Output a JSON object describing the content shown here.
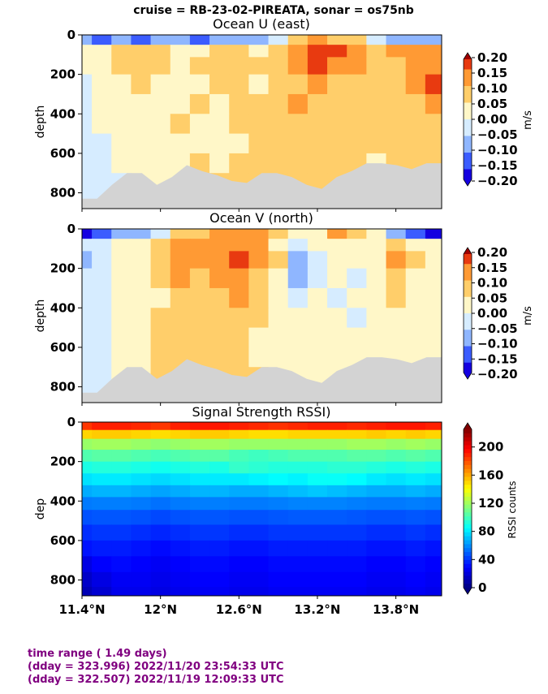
{
  "suptitle": "cruise = RB-23-02-PIREATA,  sonar = os75nb",
  "x_ticks": [
    "11.4°N",
    "12°N",
    "12.6°N",
    "13.2°N",
    "13.8°N"
  ],
  "x_tick_values": [
    11.4,
    12.0,
    12.6,
    13.2,
    13.8
  ],
  "footer": {
    "line1": "time range ( 1.49 days)",
    "line2": "(dday = 323.996) 2022/11/20 23:54:33 UTC",
    "line3": "(dday = 322.507) 2022/11/19 12:09:33 UTC"
  },
  "colors": {
    "footer_text": "#800080",
    "bottom_mask": "#d3d3d3"
  },
  "chart_data": [
    {
      "type": "heatmap",
      "title": "Ocean U (east)",
      "ylabel": "depth",
      "colorbar_label": "m/s",
      "colorbar_ticks": [
        "0.20",
        "0.15",
        "0.10",
        "0.05",
        "0.00",
        "−0.05",
        "−0.10",
        "−0.15",
        "−0.20"
      ],
      "y_ticks": [
        "0",
        "200",
        "400",
        "600",
        "800"
      ],
      "ylim": [
        880,
        0
      ],
      "xlim": [
        11.4,
        14.15
      ],
      "clim": [
        -0.2,
        0.2
      ],
      "colormap": "diverging_blue_white_red",
      "bottom_depth": [
        830,
        830,
        760,
        700,
        700,
        760,
        720,
        660,
        690,
        710,
        740,
        750,
        700,
        700,
        720,
        760,
        780,
        720,
        690,
        650,
        650,
        660,
        680,
        650,
        650
      ],
      "grid_depths": [
        25,
        75,
        150,
        250,
        350,
        450,
        550,
        650,
        750,
        850
      ],
      "grid_lats": [
        11.4,
        11.55,
        11.7,
        11.85,
        12.0,
        12.15,
        12.3,
        12.45,
        12.6,
        12.75,
        12.9,
        13.05,
        13.2,
        13.35,
        13.5,
        13.65,
        13.8,
        13.95,
        14.1
      ],
      "values": [
        [
          -0.1,
          -0.12,
          -0.08,
          -0.12,
          -0.1,
          -0.08,
          -0.12,
          -0.08,
          -0.1,
          -0.08,
          -0.04,
          0.05,
          0.12,
          0.05,
          0.06,
          -0.04,
          -0.06,
          -0.1,
          -0.08
        ],
        [
          0.0,
          0.02,
          0.05,
          0.08,
          0.06,
          0.04,
          0.02,
          0.05,
          0.06,
          0.04,
          0.05,
          0.12,
          0.18,
          0.15,
          0.1,
          0.08,
          0.1,
          0.12,
          0.1
        ],
        [
          0.0,
          0.0,
          0.06,
          0.09,
          0.05,
          0.03,
          0.05,
          0.08,
          0.06,
          0.05,
          0.07,
          0.1,
          0.15,
          0.13,
          0.1,
          0.09,
          0.06,
          0.1,
          0.12
        ],
        [
          -0.02,
          0.0,
          0.04,
          0.06,
          0.04,
          0.02,
          0.04,
          0.06,
          0.05,
          0.04,
          0.06,
          0.08,
          0.1,
          0.09,
          0.08,
          0.09,
          0.07,
          0.14,
          0.16
        ],
        [
          -0.03,
          0.02,
          0.0,
          0.04,
          0.02,
          0.04,
          0.05,
          0.04,
          0.06,
          0.05,
          0.07,
          0.12,
          0.08,
          0.07,
          0.06,
          0.08,
          0.06,
          0.08,
          0.1
        ],
        [
          -0.02,
          0.0,
          0.02,
          0.03,
          0.04,
          0.05,
          0.03,
          0.04,
          0.05,
          0.06,
          0.07,
          0.06,
          0.06,
          0.08,
          0.07,
          0.06,
          0.07,
          0.06,
          0.08
        ],
        [
          -0.03,
          -0.02,
          0.0,
          0.02,
          0.03,
          0.04,
          0.03,
          0.02,
          0.04,
          0.05,
          0.05,
          0.06,
          0.05,
          0.06,
          0.06,
          0.05,
          0.05,
          0.05,
          0.05
        ],
        [
          -0.02,
          -0.02,
          0.0,
          0.01,
          0.02,
          0.03,
          0.05,
          0.04,
          0.05,
          0.05,
          0.06,
          0.07,
          0.06,
          0.05,
          0.06,
          0.04,
          0.05,
          0.05,
          0.05
        ],
        [
          -0.02,
          -0.02,
          -0.01,
          0.0,
          0.02,
          0.02,
          0.06,
          0.05,
          0.06,
          0.06,
          0.06,
          0.07,
          0.05,
          0.05,
          0.05,
          0.05,
          0.04,
          0.05,
          0.04
        ],
        [
          -0.02,
          -0.02,
          -0.02,
          0.0,
          0.01,
          0.02,
          0.03,
          0.04,
          0.05,
          0.05,
          0.05,
          0.06,
          0.05,
          0.05,
          0.04,
          0.04,
          0.04,
          0.04,
          0.04
        ]
      ]
    },
    {
      "type": "heatmap",
      "title": "Ocean V (north)",
      "ylabel": "depth",
      "colorbar_label": "m/s",
      "colorbar_ticks": [
        "0.20",
        "0.15",
        "0.10",
        "0.05",
        "0.00",
        "−0.05",
        "−0.10",
        "−0.15",
        "−0.20"
      ],
      "y_ticks": [
        "0",
        "200",
        "400",
        "600",
        "800"
      ],
      "ylim": [
        880,
        0
      ],
      "xlim": [
        11.4,
        14.15
      ],
      "clim": [
        -0.2,
        0.2
      ],
      "colormap": "diverging_blue_white_red",
      "bottom_depth": [
        830,
        830,
        760,
        700,
        700,
        760,
        720,
        660,
        690,
        710,
        740,
        750,
        700,
        700,
        720,
        760,
        780,
        720,
        690,
        650,
        650,
        660,
        680,
        650,
        650
      ],
      "grid_depths": [
        25,
        75,
        150,
        250,
        350,
        450,
        550,
        650,
        750,
        850
      ],
      "grid_lats": [
        11.4,
        11.55,
        11.7,
        11.85,
        12.0,
        12.15,
        12.3,
        12.45,
        12.6,
        12.75,
        12.9,
        13.05,
        13.2,
        13.35,
        13.5,
        13.65,
        13.8,
        13.95,
        14.1
      ],
      "values": [
        [
          -0.16,
          -0.12,
          -0.08,
          -0.06,
          -0.02,
          0.05,
          0.08,
          0.1,
          0.14,
          0.12,
          0.05,
          0.0,
          0.02,
          0.1,
          0.06,
          0.0,
          -0.06,
          -0.12,
          -0.16
        ],
        [
          -0.04,
          -0.02,
          0.0,
          0.02,
          0.06,
          0.1,
          0.1,
          0.12,
          0.12,
          0.1,
          0.04,
          -0.02,
          0.0,
          0.02,
          0.04,
          0.02,
          0.06,
          0.04,
          0.02
        ],
        [
          -0.06,
          -0.04,
          0.0,
          0.04,
          0.08,
          0.12,
          0.1,
          0.12,
          0.16,
          0.12,
          0.06,
          -0.06,
          -0.02,
          0.0,
          0.02,
          0.0,
          0.1,
          0.06,
          0.02
        ],
        [
          -0.05,
          -0.03,
          0.0,
          0.02,
          0.06,
          0.12,
          0.09,
          0.1,
          0.12,
          0.08,
          0.04,
          -0.08,
          -0.03,
          0.0,
          -0.02,
          0.02,
          0.08,
          0.03,
          0.0
        ],
        [
          -0.04,
          -0.02,
          0.0,
          0.01,
          0.04,
          0.08,
          0.06,
          0.08,
          0.1,
          0.06,
          0.03,
          -0.04,
          0.0,
          -0.02,
          0.0,
          0.03,
          0.06,
          0.02,
          0.0
        ],
        [
          -0.03,
          -0.02,
          0.0,
          0.02,
          0.05,
          0.07,
          0.06,
          0.06,
          0.08,
          0.05,
          0.02,
          0.0,
          0.01,
          0.0,
          -0.04,
          0.02,
          0.03,
          0.02,
          0.0
        ],
        [
          -0.03,
          -0.02,
          0.0,
          0.02,
          0.06,
          0.06,
          0.06,
          0.06,
          0.06,
          0.04,
          0.02,
          0.0,
          0.02,
          0.01,
          0.0,
          0.02,
          0.02,
          0.02,
          0.0
        ],
        [
          -0.02,
          -0.02,
          0.0,
          0.02,
          0.06,
          0.06,
          0.07,
          0.06,
          0.06,
          0.04,
          0.02,
          0.01,
          0.02,
          0.01,
          0.0,
          0.01,
          0.02,
          0.02,
          0.01
        ],
        [
          -0.02,
          -0.01,
          0.0,
          0.02,
          0.06,
          0.07,
          0.08,
          0.07,
          0.06,
          0.05,
          0.03,
          0.02,
          0.02,
          0.02,
          0.01,
          0.02,
          0.02,
          0.02,
          0.01
        ],
        [
          -0.02,
          -0.01,
          0.0,
          0.02,
          0.06,
          0.07,
          0.08,
          0.07,
          0.06,
          0.05,
          0.03,
          0.02,
          0.02,
          0.02,
          0.01,
          0.02,
          0.02,
          0.02,
          0.01
        ]
      ]
    },
    {
      "type": "heatmap",
      "title": "Signal Strength RSSI)",
      "ylabel": "dep",
      "colorbar_label": "RSSI counts",
      "colorbar_ticks": [
        "200",
        "160",
        "120",
        "80",
        "40",
        "0"
      ],
      "y_ticks": [
        "0",
        "200",
        "400",
        "600",
        "800"
      ],
      "ylim": [
        880,
        0
      ],
      "xlim": [
        11.4,
        14.15
      ],
      "clim": [
        0,
        225
      ],
      "colormap": "jet",
      "grid_depths": [
        20,
        60,
        110,
        170,
        230,
        290,
        350,
        410,
        480,
        560,
        640,
        720,
        800,
        870
      ],
      "grid_lats": [
        11.4,
        11.55,
        11.7,
        11.85,
        12.0,
        12.15,
        12.3,
        12.45,
        12.6,
        12.75,
        12.9,
        13.05,
        13.2,
        13.35,
        13.5,
        13.65,
        13.8,
        13.95,
        14.1
      ],
      "values": [
        [
          185,
          190,
          190,
          188,
          185,
          190,
          192,
          192,
          190,
          188,
          186,
          188,
          190,
          190,
          188,
          190,
          192,
          192,
          190
        ],
        [
          150,
          152,
          152,
          150,
          148,
          150,
          152,
          152,
          150,
          148,
          148,
          150,
          150,
          150,
          150,
          152,
          150,
          152,
          150
        ],
        [
          118,
          120,
          120,
          118,
          116,
          118,
          120,
          120,
          118,
          118,
          118,
          118,
          118,
          118,
          120,
          120,
          118,
          120,
          118
        ],
        [
          102,
          104,
          104,
          102,
          100,
          102,
          104,
          104,
          100,
          98,
          100,
          102,
          102,
          102,
          104,
          104,
          102,
          104,
          102
        ],
        [
          90,
          92,
          92,
          90,
          88,
          90,
          92,
          90,
          96,
          94,
          92,
          92,
          92,
          94,
          94,
          92,
          90,
          92,
          90
        ],
        [
          78,
          80,
          80,
          78,
          76,
          78,
          80,
          80,
          80,
          82,
          84,
          82,
          86,
          86,
          84,
          80,
          78,
          80,
          78
        ],
        [
          66,
          68,
          68,
          66,
          64,
          66,
          68,
          68,
          66,
          66,
          68,
          70,
          72,
          70,
          68,
          66,
          66,
          68,
          66
        ],
        [
          55,
          56,
          56,
          55,
          53,
          55,
          56,
          56,
          55,
          55,
          56,
          57,
          57,
          57,
          56,
          55,
          55,
          56,
          55
        ],
        [
          46,
          47,
          47,
          46,
          44,
          46,
          47,
          47,
          46,
          46,
          47,
          48,
          48,
          48,
          47,
          46,
          46,
          47,
          46
        ],
        [
          38,
          40,
          40,
          38,
          36,
          38,
          40,
          40,
          38,
          38,
          40,
          40,
          40,
          40,
          40,
          38,
          38,
          40,
          38
        ],
        [
          32,
          34,
          34,
          32,
          30,
          32,
          34,
          34,
          32,
          32,
          34,
          34,
          34,
          34,
          34,
          32,
          32,
          34,
          32
        ],
        [
          22,
          28,
          30,
          28,
          26,
          28,
          30,
          30,
          28,
          28,
          30,
          30,
          30,
          30,
          30,
          28,
          28,
          30,
          28
        ],
        [
          16,
          22,
          26,
          26,
          24,
          26,
          28,
          28,
          26,
          26,
          28,
          28,
          28,
          28,
          28,
          26,
          26,
          28,
          26
        ],
        [
          12,
          18,
          24,
          24,
          22,
          24,
          26,
          26,
          24,
          24,
          26,
          26,
          26,
          26,
          26,
          24,
          24,
          26,
          24
        ]
      ]
    }
  ]
}
